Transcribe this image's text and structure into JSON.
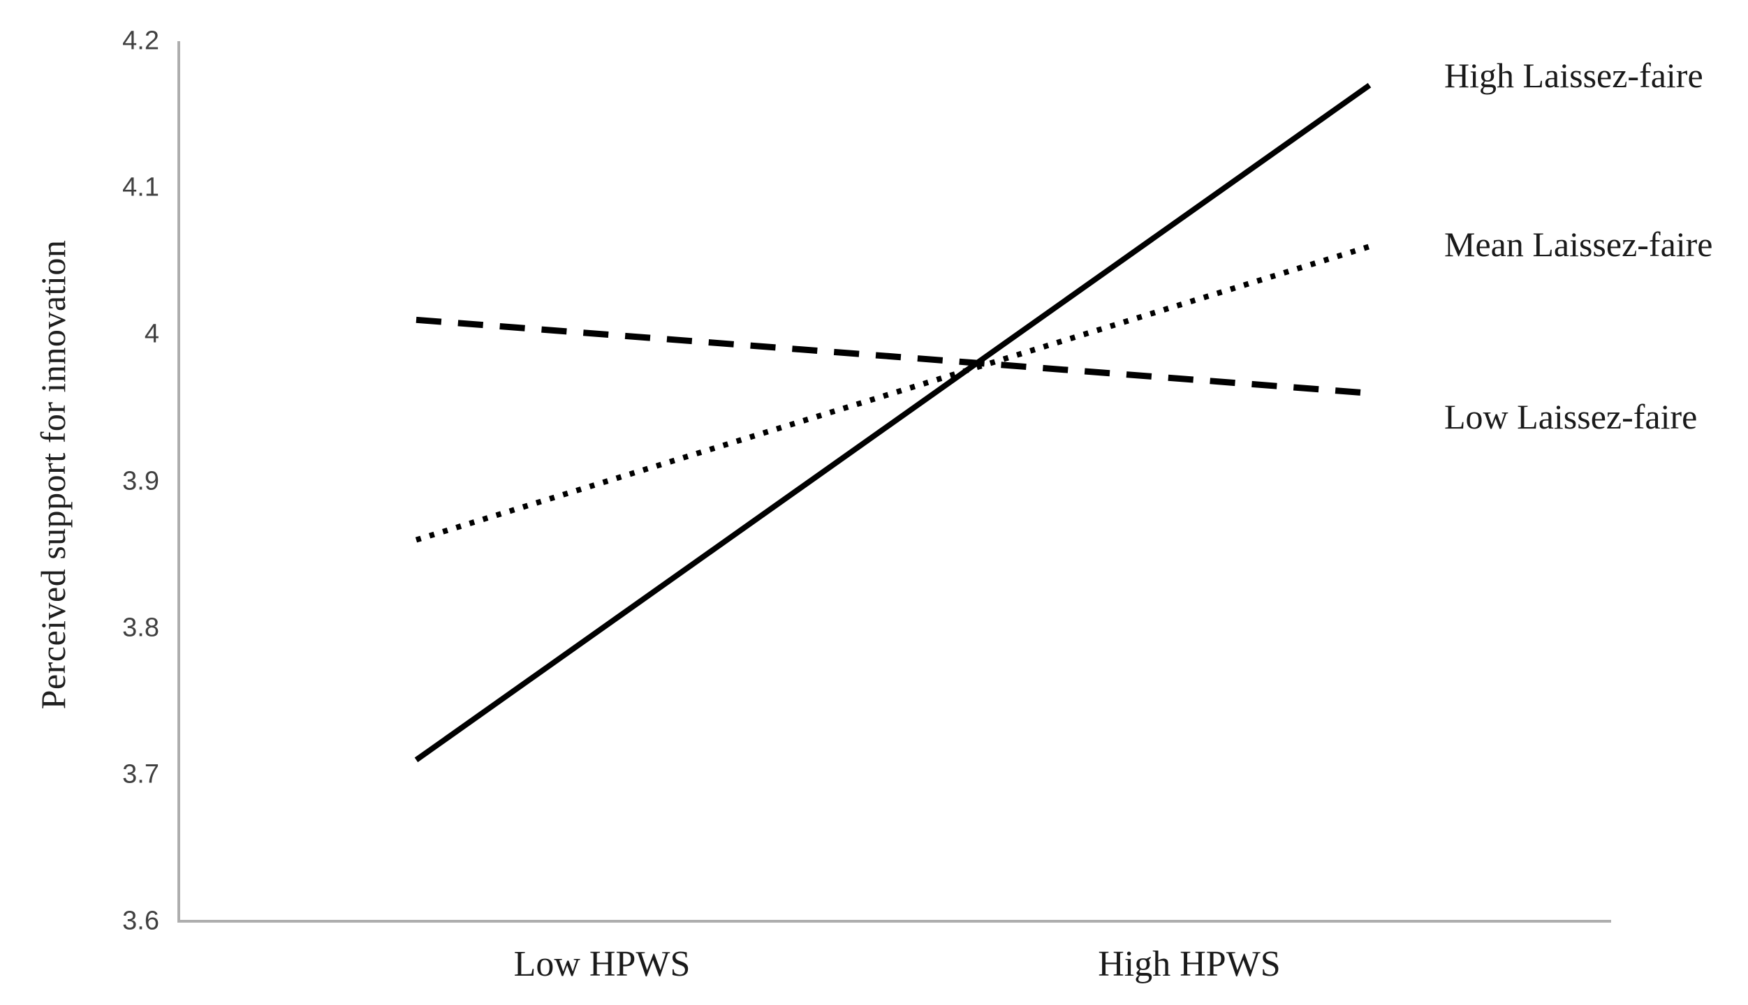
{
  "colors": {
    "line": "#000000",
    "axis": "#aeaeae",
    "tick_text": "#404040",
    "label_text": "#1a1a1a",
    "background": "#ffffff"
  },
  "chart_data": {
    "type": "line",
    "title": "",
    "ylabel": "Perceived support for innovation",
    "xlabel": "",
    "ylim": [
      3.6,
      4.2
    ],
    "yticks": [
      3.6,
      3.7,
      3.8,
      3.9,
      4.0,
      4.1,
      4.2
    ],
    "ytick_labels": [
      "3.6",
      "3.7",
      "3.8",
      "3.9",
      "4",
      "4.1",
      "4.2"
    ],
    "categories": [
      "Low HPWS",
      "High HPWS"
    ],
    "grid": "off",
    "legend_position": "right-of-line-ends",
    "series": [
      {
        "name": "High Laissez-faire",
        "style": "solid",
        "values": [
          3.71,
          4.17
        ]
      },
      {
        "name": "Mean Laissez-faire",
        "style": "dotted",
        "values": [
          3.86,
          4.06
        ]
      },
      {
        "name": "Low Laissez-faire",
        "style": "dashed",
        "values": [
          4.01,
          3.96
        ]
      }
    ]
  }
}
